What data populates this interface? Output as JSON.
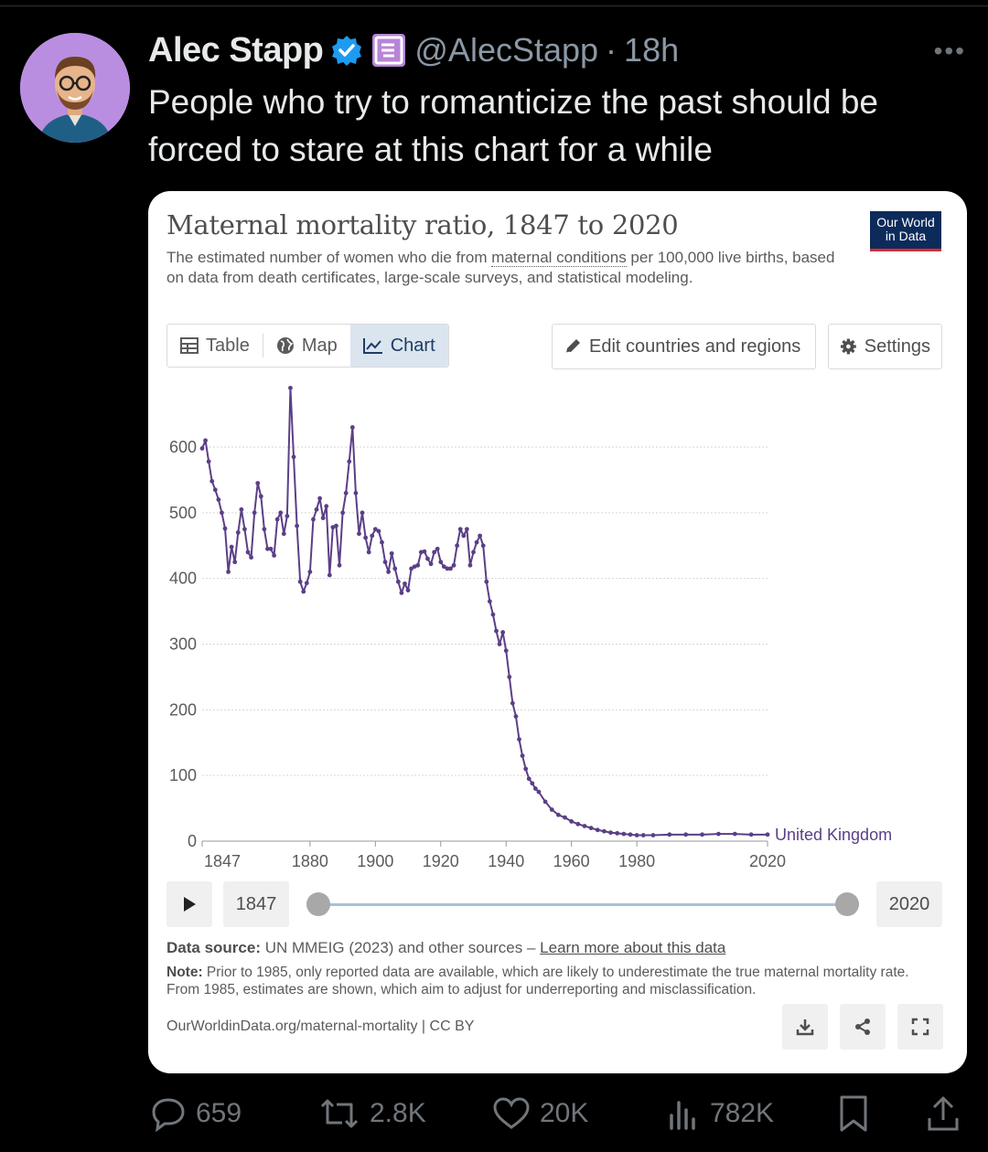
{
  "tweet": {
    "author_name": "Alec Stapp",
    "handle": "@AlecStapp",
    "separator": "·",
    "time": "18h",
    "text": "People who try to romanticize the past should be forced to stare at this chart for a while"
  },
  "icons": {
    "verified": "verified-badge-icon",
    "affiliate": "affiliate-badge-icon",
    "more": "more-icon"
  },
  "card": {
    "title": "Maternal mortality ratio, 1847 to 2020",
    "subtitle_part1": "The estimated number of women who die from ",
    "subtitle_link": "maternal conditions",
    "subtitle_part2": " per 100,000 live births, based on data from death certificates, large-scale surveys, and statistical modeling.",
    "logo_line1": "Our World",
    "logo_line2": "in Data",
    "tabs": [
      {
        "label": "Table",
        "icon": "table-icon"
      },
      {
        "label": "Map",
        "icon": "globe-icon"
      },
      {
        "label": "Chart",
        "icon": "line-chart-icon"
      }
    ],
    "edit_button": "Edit countries and regions",
    "settings_button": "Settings",
    "timeline_start": "1847",
    "timeline_end": "2020",
    "source_label": "Data source:",
    "source_text": " UN MMEIG (2023) and other sources – ",
    "source_link": "Learn more about this data",
    "note_label": "Note:",
    "note_text": " Prior to 1985, only reported data are available, which are likely to underestimate the true maternal mortality rate. From 1985, estimates are shown, which aim to adjust for underreporting and misclassification.",
    "footer_url": "OurWorldinData.org/maternal-mortality | CC BY"
  },
  "chart_data": {
    "type": "line",
    "title": "Maternal mortality ratio, 1847 to 2020",
    "xlim": [
      1847,
      2020
    ],
    "ylim": [
      0,
      600
    ],
    "xticks": [
      1847,
      1880,
      1900,
      1920,
      1940,
      1960,
      1980,
      2020
    ],
    "yticks": [
      0,
      100,
      200,
      300,
      400,
      500,
      600
    ],
    "grid": true,
    "series": [
      {
        "name": "United Kingdom",
        "color": "#5b3f86",
        "x": [
          1847,
          1848,
          1849,
          1850,
          1851,
          1852,
          1853,
          1854,
          1855,
          1856,
          1857,
          1858,
          1859,
          1860,
          1861,
          1862,
          1863,
          1864,
          1865,
          1866,
          1867,
          1868,
          1869,
          1870,
          1871,
          1872,
          1873,
          1874,
          1875,
          1876,
          1877,
          1878,
          1879,
          1880,
          1881,
          1882,
          1883,
          1884,
          1885,
          1886,
          1887,
          1888,
          1889,
          1890,
          1891,
          1892,
          1893,
          1894,
          1895,
          1896,
          1897,
          1898,
          1899,
          1900,
          1901,
          1902,
          1903,
          1904,
          1905,
          1906,
          1907,
          1908,
          1909,
          1910,
          1911,
          1912,
          1913,
          1914,
          1915,
          1916,
          1917,
          1918,
          1919,
          1920,
          1921,
          1922,
          1923,
          1924,
          1925,
          1926,
          1927,
          1928,
          1929,
          1930,
          1931,
          1932,
          1933,
          1934,
          1935,
          1936,
          1937,
          1938,
          1939,
          1940,
          1941,
          1942,
          1943,
          1944,
          1945,
          1946,
          1947,
          1948,
          1949,
          1950,
          1952,
          1954,
          1956,
          1958,
          1960,
          1962,
          1964,
          1966,
          1968,
          1970,
          1972,
          1974,
          1976,
          1978,
          1980,
          1982,
          1985,
          1990,
          1995,
          2000,
          2005,
          2010,
          2015,
          2020
        ],
        "values": [
          598,
          610,
          578,
          548,
          535,
          520,
          500,
          476,
          410,
          448,
          425,
          470,
          505,
          475,
          440,
          432,
          500,
          545,
          525,
          475,
          445,
          445,
          435,
          490,
          500,
          468,
          495,
          690,
          585,
          480,
          395,
          380,
          393,
          410,
          490,
          505,
          522,
          492,
          510,
          405,
          478,
          480,
          420,
          500,
          530,
          578,
          630,
          530,
          468,
          500,
          462,
          440,
          465,
          475,
          472,
          455,
          425,
          410,
          438,
          415,
          395,
          378,
          392,
          382,
          415,
          418,
          420,
          440,
          441,
          430,
          422,
          440,
          445,
          425,
          418,
          415,
          415,
          420,
          450,
          475,
          465,
          475,
          420,
          440,
          455,
          465,
          450,
          395,
          365,
          345,
          320,
          300,
          318,
          290,
          250,
          210,
          190,
          155,
          130,
          110,
          95,
          88,
          80,
          75,
          60,
          48,
          40,
          36,
          30,
          26,
          23,
          20,
          17,
          15,
          13,
          12,
          11,
          10,
          9,
          9,
          9,
          10,
          10,
          10,
          11,
          11,
          10,
          10
        ]
      }
    ]
  },
  "actions": {
    "replies": "659",
    "reposts": "2.8K",
    "likes": "20K",
    "views": "782K"
  }
}
